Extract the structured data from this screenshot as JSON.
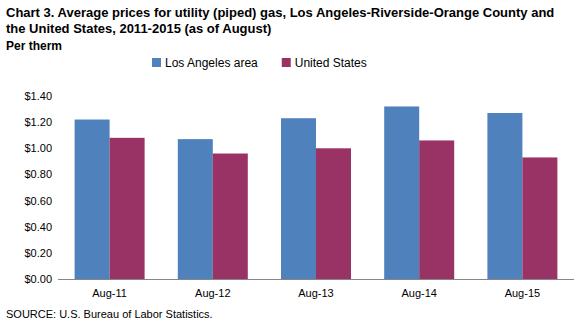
{
  "chart_data": {
    "type": "bar",
    "title": "Chart 3. Average prices for utility (piped) gas, Los Angeles-Riverside-Orange  County and the United States, 2011-2015 (as of August)",
    "y_label": "Per therm",
    "source": "SOURCE: U.S. Bureau of Labor Statistics.",
    "categories": [
      "Aug-11",
      "Aug-12",
      "Aug-13",
      "Aug-14",
      "Aug-15"
    ],
    "series": [
      {
        "name": "Los Angeles area",
        "color": "#4f81bd",
        "values": [
          1.22,
          1.07,
          1.23,
          1.32,
          1.27
        ]
      },
      {
        "name": "United States",
        "color": "#993366",
        "values": [
          1.08,
          0.96,
          1.0,
          1.06,
          0.93
        ]
      }
    ],
    "ylim": [
      0,
      1.4
    ],
    "yticks": [
      {
        "value": 0,
        "label": "$0.00"
      },
      {
        "value": 0.2,
        "label": "$0.20"
      },
      {
        "value": 0.4,
        "label": "$0.40"
      },
      {
        "value": 0.6,
        "label": "$0.60"
      },
      {
        "value": 0.8,
        "label": "$0.80"
      },
      {
        "value": 1.0,
        "label": "$1.00"
      },
      {
        "value": 1.2,
        "label": "$1.20"
      },
      {
        "value": 1.4,
        "label": "$1.40"
      }
    ],
    "grid": false,
    "legend": "top"
  }
}
